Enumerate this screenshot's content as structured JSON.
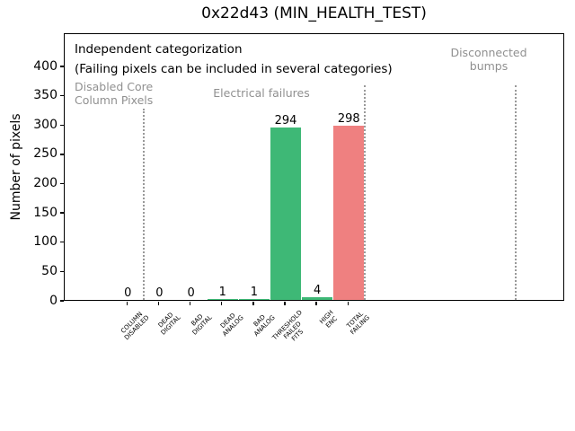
{
  "chart_data": {
    "type": "bar",
    "title": "0x22d43 (MIN_HEALTH_TEST)",
    "ylabel": "Number of pixels",
    "xlabel": "",
    "categories": [
      [
        "COLUMN",
        "DISABLED"
      ],
      [
        "DEAD",
        "DIGITAL"
      ],
      [
        "BAD",
        "DIGITAL"
      ],
      [
        "DEAD",
        "ANALOG"
      ],
      [
        "BAD",
        "ANALOG"
      ],
      [
        "THRESHOLD",
        "FAILED",
        "FITS"
      ],
      [
        "HIGH",
        "ENC"
      ],
      [
        "TOTAL",
        "FAILING"
      ]
    ],
    "values": [
      0,
      0,
      0,
      1,
      1,
      294,
      4,
      298
    ],
    "bar_colors": [
      "#3eb876",
      "#3eb876",
      "#3eb876",
      "#3eb876",
      "#3eb876",
      "#3eb876",
      "#3eb876",
      "#ef8080"
    ],
    "yticks": [
      0,
      50,
      100,
      150,
      200,
      250,
      300,
      350,
      400
    ],
    "ylim": [
      0,
      455
    ],
    "grid": false,
    "legend": "none",
    "annotations": {
      "note_line1": "Independent categorization",
      "note_line2": "(Failing pixels can be included in several categories)",
      "section_disabled": [
        "Disabled Core",
        "Column Pixels"
      ],
      "section_electrical": "Electrical failures",
      "section_disconnected": [
        "Disconnected",
        "bumps"
      ]
    },
    "colors": {
      "bar_green": "#3eb876",
      "bar_red": "#ef8080",
      "annotation_gray": "#909090",
      "separator_gray": "#999999"
    }
  }
}
